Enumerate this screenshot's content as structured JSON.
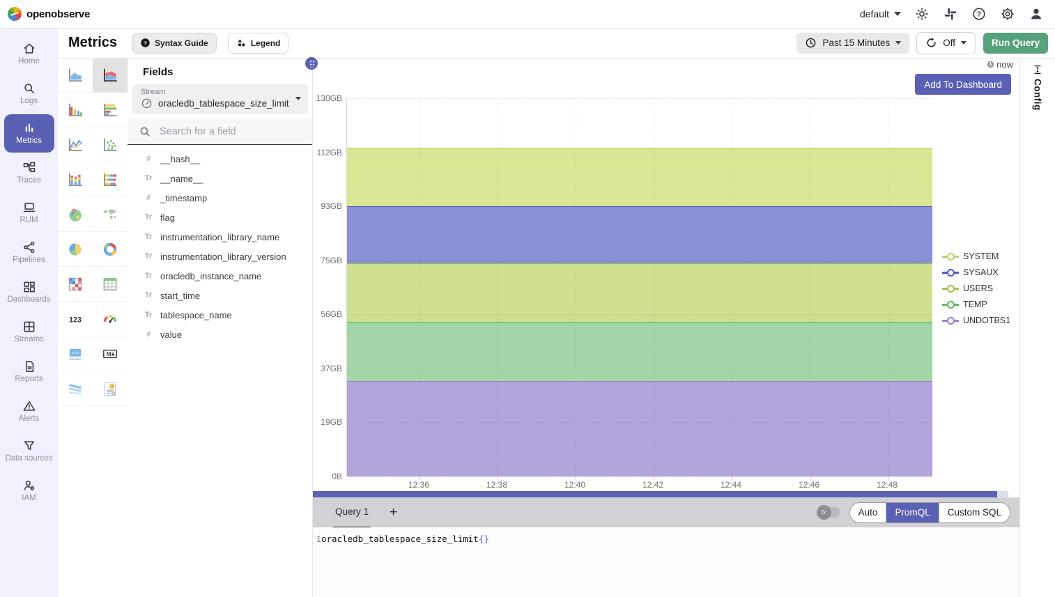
{
  "topbar": {
    "brand": "openobserve",
    "org_label": "default",
    "icons": [
      "theme-brightness-icon",
      "apps-slack-icon",
      "help-icon",
      "settings-gear-icon",
      "account-person-icon"
    ]
  },
  "header": {
    "title": "Metrics",
    "syntax_guide": "Syntax Guide",
    "legend": "Legend",
    "time_range": "Past 15 Minutes",
    "refresh": "Off",
    "run_query": "Run Query"
  },
  "sidebar": {
    "items": [
      {
        "label": "Home",
        "icon": "home",
        "selected": false
      },
      {
        "label": "Logs",
        "icon": "logs",
        "selected": false
      },
      {
        "label": "Metrics",
        "icon": "metrics",
        "selected": true
      },
      {
        "label": "Traces",
        "icon": "traces",
        "selected": false
      },
      {
        "label": "RUM",
        "icon": "rum",
        "selected": false
      },
      {
        "label": "Pipelines",
        "icon": "pipelines",
        "selected": false
      },
      {
        "label": "Dashboards",
        "icon": "dashboards",
        "selected": false
      },
      {
        "label": "Streams",
        "icon": "streams",
        "selected": false
      },
      {
        "label": "Reports",
        "icon": "reports",
        "selected": false
      },
      {
        "label": "Alerts",
        "icon": "alerts",
        "selected": false
      },
      {
        "label": "Data sources",
        "icon": "datasources",
        "selected": false
      },
      {
        "label": "IAM",
        "icon": "iam",
        "selected": false
      }
    ]
  },
  "chart_selector": {
    "items": [
      {
        "icon": "area-chart",
        "selected": false
      },
      {
        "icon": "stacked-area-chart",
        "selected": true
      },
      {
        "icon": "bar-chart",
        "selected": false
      },
      {
        "icon": "h-bar-chart",
        "selected": false
      },
      {
        "icon": "line-chart",
        "selected": false
      },
      {
        "icon": "scatter-chart",
        "selected": false
      },
      {
        "icon": "stacked-bar-chart",
        "selected": false
      },
      {
        "icon": "h-stacked-bar-chart",
        "selected": false
      },
      {
        "icon": "geo-map",
        "selected": false
      },
      {
        "icon": "world-map",
        "selected": false
      },
      {
        "icon": "pie-chart",
        "selected": false
      },
      {
        "icon": "donut-chart",
        "selected": false
      },
      {
        "icon": "heatmap-chart",
        "selected": false
      },
      {
        "icon": "table-view",
        "selected": false
      },
      {
        "icon": "metric-text",
        "selected": false
      },
      {
        "icon": "gauge-chart",
        "selected": false
      },
      {
        "icon": "html-editor",
        "selected": false
      },
      {
        "icon": "markdown-editor",
        "selected": false
      },
      {
        "icon": "sankey-chart",
        "selected": false
      },
      {
        "icon": "custom-chart",
        "selected": false
      }
    ]
  },
  "fields": {
    "title": "Fields",
    "stream_label": "Stream",
    "stream_value": "oracledb_tablespace_size_limit",
    "search_placeholder": "Search for a field",
    "items": [
      {
        "type": "number",
        "name": "__hash__"
      },
      {
        "type": "text",
        "name": "__name__"
      },
      {
        "type": "number",
        "name": "_timestamp"
      },
      {
        "type": "text",
        "name": "flag"
      },
      {
        "type": "text",
        "name": "instrumentation_library_name"
      },
      {
        "type": "text",
        "name": "instrumentation_library_version"
      },
      {
        "type": "text",
        "name": "oracledb_instance_name"
      },
      {
        "type": "text",
        "name": "start_time"
      },
      {
        "type": "text",
        "name": "tablespace_name"
      },
      {
        "type": "number",
        "name": "value"
      }
    ]
  },
  "chart_panel": {
    "now_label": "now",
    "add_to_dashboard": "Add To Dashboard",
    "config_tab": "Config"
  },
  "chart_data": {
    "type": "area",
    "stacked": true,
    "title": "",
    "xlabel": "",
    "ylabel": "",
    "ylim": [
      0,
      130
    ],
    "y_unit": "GB",
    "yticks": [
      "0B",
      "19GB",
      "37GB",
      "56GB",
      "75GB",
      "93GB",
      "112GB",
      "130GB"
    ],
    "x": [
      "12:36",
      "12:38",
      "12:40",
      "12:42",
      "12:44",
      "12:46",
      "12:48"
    ],
    "grid": true,
    "legend_position": "right",
    "note": "each series is a constant (flat) value across the whole 15-minute window; total stack height 112.9GB",
    "series": [
      {
        "name": "UNDOTBS1",
        "value_gb": 32.8,
        "color": "#9b7fd6",
        "fill": "#b4a4dc"
      },
      {
        "name": "TEMP",
        "value_gb": 20.3,
        "color": "#58b966",
        "fill": "#a3d6a6"
      },
      {
        "name": "USERS",
        "value_gb": 20.1,
        "color": "#a9bd4f",
        "fill": "#cfdf90"
      },
      {
        "name": "SYSAUX",
        "value_gb": 19.7,
        "color": "#4a5bc8",
        "fill": "#8a90d6"
      },
      {
        "name": "SYSTEM",
        "value_gb": 20.1,
        "color": "#b9cf72",
        "fill": "#d9e795"
      }
    ]
  },
  "query": {
    "tab_label": "Query 1",
    "add_label": "+",
    "fx_label": "fx",
    "modes": [
      "Auto",
      "PromQL",
      "Custom SQL"
    ],
    "selected_mode": "PromQL",
    "line_number": "1",
    "promql_text": "oracledb_tablespace_size_limit",
    "promql_braces": "{}"
  },
  "colors": {
    "accent_indigo": "#5a61b5",
    "run_query_green": "#57a17b",
    "sidebar_bg": "#f1f1fb",
    "querybar_gray": "#d2d2d4"
  }
}
